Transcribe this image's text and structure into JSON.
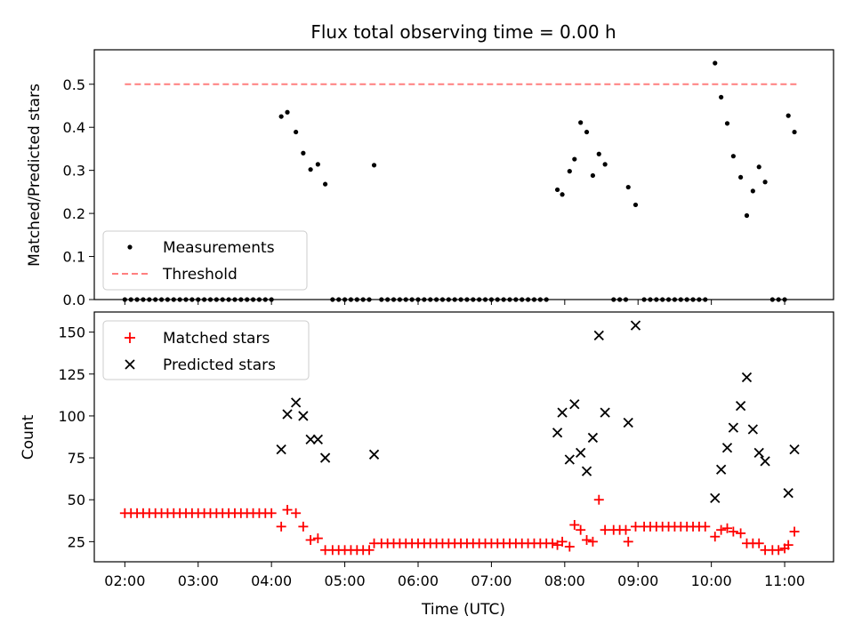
{
  "chart_data": [
    {
      "type": "scatter",
      "title": "Flux total observing time = 0.00 h",
      "xlabel": "",
      "ylabel": "Matched/Predicted stars",
      "xlim": [
        "01:35",
        "11:40"
      ],
      "ylim": [
        0,
        0.58
      ],
      "yticks": [
        0.0,
        0.1,
        0.2,
        0.3,
        0.4,
        0.5
      ],
      "ytick_labels": [
        "0.0",
        "0.1",
        "0.2",
        "0.3",
        "0.4",
        "0.5"
      ],
      "legend": {
        "placement": "lower-left",
        "entries": [
          "Measurements",
          "Threshold"
        ]
      },
      "series": [
        {
          "name": "Measurements",
          "marker": "dot",
          "color": "#000000",
          "points": [
            [
              "02:00",
              0
            ],
            [
              "02:05",
              0
            ],
            [
              "02:10",
              0
            ],
            [
              "02:15",
              0
            ],
            [
              "02:20",
              0
            ],
            [
              "02:25",
              0
            ],
            [
              "02:30",
              0
            ],
            [
              "02:35",
              0
            ],
            [
              "02:40",
              0
            ],
            [
              "02:45",
              0
            ],
            [
              "02:50",
              0
            ],
            [
              "02:55",
              0
            ],
            [
              "03:00",
              0
            ],
            [
              "03:05",
              0
            ],
            [
              "03:10",
              0
            ],
            [
              "03:15",
              0
            ],
            [
              "03:20",
              0
            ],
            [
              "03:25",
              0
            ],
            [
              "03:30",
              0
            ],
            [
              "03:35",
              0
            ],
            [
              "03:40",
              0
            ],
            [
              "03:45",
              0
            ],
            [
              "03:50",
              0
            ],
            [
              "03:55",
              0
            ],
            [
              "04:00",
              0
            ],
            [
              "04:08",
              0.425
            ],
            [
              "04:13",
              0.435
            ],
            [
              "04:20",
              0.389
            ],
            [
              "04:26",
              0.34
            ],
            [
              "04:32",
              0.302
            ],
            [
              "04:38",
              0.314
            ],
            [
              "04:44",
              0.268
            ],
            [
              "04:50",
              0
            ],
            [
              "04:55",
              0
            ],
            [
              "05:00",
              0
            ],
            [
              "05:05",
              0
            ],
            [
              "05:10",
              0
            ],
            [
              "05:15",
              0
            ],
            [
              "05:20",
              0
            ],
            [
              "05:24",
              0.312
            ],
            [
              "05:30",
              0
            ],
            [
              "05:35",
              0
            ],
            [
              "05:40",
              0
            ],
            [
              "05:45",
              0
            ],
            [
              "05:50",
              0
            ],
            [
              "05:55",
              0
            ],
            [
              "06:00",
              0
            ],
            [
              "06:05",
              0
            ],
            [
              "06:10",
              0
            ],
            [
              "06:15",
              0
            ],
            [
              "06:20",
              0
            ],
            [
              "06:25",
              0
            ],
            [
              "06:30",
              0
            ],
            [
              "06:35",
              0
            ],
            [
              "06:40",
              0
            ],
            [
              "06:45",
              0
            ],
            [
              "06:50",
              0
            ],
            [
              "06:55",
              0
            ],
            [
              "07:00",
              0
            ],
            [
              "07:05",
              0
            ],
            [
              "07:10",
              0
            ],
            [
              "07:15",
              0
            ],
            [
              "07:20",
              0
            ],
            [
              "07:25",
              0
            ],
            [
              "07:30",
              0
            ],
            [
              "07:35",
              0
            ],
            [
              "07:40",
              0
            ],
            [
              "07:45",
              0
            ],
            [
              "07:54",
              0.255
            ],
            [
              "07:58",
              0.244
            ],
            [
              "08:04",
              0.298
            ],
            [
              "08:08",
              0.326
            ],
            [
              "08:13",
              0.411
            ],
            [
              "08:18",
              0.389
            ],
            [
              "08:23",
              0.288
            ],
            [
              "08:28",
              0.338
            ],
            [
              "08:33",
              0.314
            ],
            [
              "08:40",
              0
            ],
            [
              "08:45",
              0
            ],
            [
              "08:50",
              0
            ],
            [
              "08:52",
              0.261
            ],
            [
              "08:58",
              0.22
            ],
            [
              "09:05",
              0
            ],
            [
              "09:10",
              0
            ],
            [
              "09:15",
              0
            ],
            [
              "09:20",
              0
            ],
            [
              "09:25",
              0
            ],
            [
              "09:30",
              0
            ],
            [
              "09:35",
              0
            ],
            [
              "09:40",
              0
            ],
            [
              "09:45",
              0
            ],
            [
              "09:50",
              0
            ],
            [
              "09:55",
              0
            ],
            [
              "10:03",
              0.549
            ],
            [
              "10:08",
              0.47
            ],
            [
              "10:13",
              0.409
            ],
            [
              "10:18",
              0.333
            ],
            [
              "10:24",
              0.284
            ],
            [
              "10:29",
              0.195
            ],
            [
              "10:34",
              0.252
            ],
            [
              "10:39",
              0.308
            ],
            [
              "10:44",
              0.273
            ],
            [
              "10:50",
              0
            ],
            [
              "10:55",
              0
            ],
            [
              "11:00",
              0
            ],
            [
              "11:03",
              0.427
            ],
            [
              "11:08",
              0.389
            ]
          ]
        },
        {
          "name": "Threshold",
          "style": "dashed-line",
          "color": "#ff7f7f",
          "points": [
            [
              "02:00",
              0.5
            ],
            [
              "11:10",
              0.5
            ]
          ]
        }
      ]
    },
    {
      "type": "scatter",
      "title": "",
      "xlabel": "Time (UTC)",
      "ylabel": "Count",
      "xlim": [
        "01:35",
        "11:40"
      ],
      "ylim": [
        13,
        162
      ],
      "yticks": [
        25,
        50,
        75,
        100,
        125,
        150
      ],
      "ytick_labels": [
        "25",
        "50",
        "75",
        "100",
        "125",
        "150"
      ],
      "xticks": [
        "02:00",
        "03:00",
        "04:00",
        "05:00",
        "06:00",
        "07:00",
        "08:00",
        "09:00",
        "10:00",
        "11:00"
      ],
      "xtick_labels": [
        "02:00",
        "03:00",
        "04:00",
        "05:00",
        "06:00",
        "07:00",
        "08:00",
        "09:00",
        "10:00",
        "11:00"
      ],
      "legend": {
        "placement": "upper-left",
        "entries": [
          "Matched stars",
          "Predicted stars"
        ]
      },
      "series": [
        {
          "name": "Matched stars",
          "marker": "plus",
          "color": "#ff0000",
          "points": [
            [
              "02:00",
              42
            ],
            [
              "02:05",
              42
            ],
            [
              "02:10",
              42
            ],
            [
              "02:15",
              42
            ],
            [
              "02:20",
              42
            ],
            [
              "02:25",
              42
            ],
            [
              "02:30",
              42
            ],
            [
              "02:35",
              42
            ],
            [
              "02:40",
              42
            ],
            [
              "02:45",
              42
            ],
            [
              "02:50",
              42
            ],
            [
              "02:55",
              42
            ],
            [
              "03:00",
              42
            ],
            [
              "03:05",
              42
            ],
            [
              "03:10",
              42
            ],
            [
              "03:15",
              42
            ],
            [
              "03:20",
              42
            ],
            [
              "03:25",
              42
            ],
            [
              "03:30",
              42
            ],
            [
              "03:35",
              42
            ],
            [
              "03:40",
              42
            ],
            [
              "03:45",
              42
            ],
            [
              "03:50",
              42
            ],
            [
              "03:55",
              42
            ],
            [
              "04:00",
              42
            ],
            [
              "04:08",
              34
            ],
            [
              "04:13",
              44
            ],
            [
              "04:20",
              42
            ],
            [
              "04:26",
              34
            ],
            [
              "04:32",
              26
            ],
            [
              "04:38",
              27
            ],
            [
              "04:44",
              20
            ],
            [
              "04:50",
              20
            ],
            [
              "04:55",
              20
            ],
            [
              "05:00",
              20
            ],
            [
              "05:05",
              20
            ],
            [
              "05:10",
              20
            ],
            [
              "05:15",
              20
            ],
            [
              "05:20",
              20
            ],
            [
              "05:24",
              24
            ],
            [
              "05:30",
              24
            ],
            [
              "05:35",
              24
            ],
            [
              "05:40",
              24
            ],
            [
              "05:45",
              24
            ],
            [
              "05:50",
              24
            ],
            [
              "05:55",
              24
            ],
            [
              "06:00",
              24
            ],
            [
              "06:05",
              24
            ],
            [
              "06:10",
              24
            ],
            [
              "06:15",
              24
            ],
            [
              "06:20",
              24
            ],
            [
              "06:25",
              24
            ],
            [
              "06:30",
              24
            ],
            [
              "06:35",
              24
            ],
            [
              "06:40",
              24
            ],
            [
              "06:45",
              24
            ],
            [
              "06:50",
              24
            ],
            [
              "06:55",
              24
            ],
            [
              "07:00",
              24
            ],
            [
              "07:05",
              24
            ],
            [
              "07:10",
              24
            ],
            [
              "07:15",
              24
            ],
            [
              "07:20",
              24
            ],
            [
              "07:25",
              24
            ],
            [
              "07:30",
              24
            ],
            [
              "07:35",
              24
            ],
            [
              "07:40",
              24
            ],
            [
              "07:45",
              24
            ],
            [
              "07:50",
              24
            ],
            [
              "07:54",
              23
            ],
            [
              "07:58",
              25
            ],
            [
              "08:04",
              22
            ],
            [
              "08:08",
              35
            ],
            [
              "08:13",
              32
            ],
            [
              "08:18",
              26
            ],
            [
              "08:23",
              25
            ],
            [
              "08:28",
              50
            ],
            [
              "08:33",
              32
            ],
            [
              "08:40",
              32
            ],
            [
              "08:45",
              32
            ],
            [
              "08:50",
              32
            ],
            [
              "08:52",
              25
            ],
            [
              "08:58",
              34
            ],
            [
              "09:05",
              34
            ],
            [
              "09:10",
              34
            ],
            [
              "09:15",
              34
            ],
            [
              "09:20",
              34
            ],
            [
              "09:25",
              34
            ],
            [
              "09:30",
              34
            ],
            [
              "09:35",
              34
            ],
            [
              "09:40",
              34
            ],
            [
              "09:45",
              34
            ],
            [
              "09:50",
              34
            ],
            [
              "09:55",
              34
            ],
            [
              "10:03",
              28
            ],
            [
              "10:08",
              32
            ],
            [
              "10:13",
              33
            ],
            [
              "10:18",
              31
            ],
            [
              "10:24",
              30
            ],
            [
              "10:29",
              24
            ],
            [
              "10:34",
              24
            ],
            [
              "10:39",
              24
            ],
            [
              "10:44",
              20
            ],
            [
              "10:50",
              20
            ],
            [
              "10:55",
              20
            ],
            [
              "11:00",
              21
            ],
            [
              "11:03",
              23
            ],
            [
              "11:08",
              31
            ]
          ]
        },
        {
          "name": "Predicted stars",
          "marker": "x",
          "color": "#000000",
          "points": [
            [
              "04:08",
              80
            ],
            [
              "04:13",
              101
            ],
            [
              "04:20",
              108
            ],
            [
              "04:26",
              100
            ],
            [
              "04:32",
              86
            ],
            [
              "04:38",
              86
            ],
            [
              "04:44",
              75
            ],
            [
              "05:24",
              77
            ],
            [
              "07:54",
              90
            ],
            [
              "07:58",
              102
            ],
            [
              "08:04",
              74
            ],
            [
              "08:08",
              107
            ],
            [
              "08:13",
              78
            ],
            [
              "08:18",
              67
            ],
            [
              "08:23",
              87
            ],
            [
              "08:28",
              148
            ],
            [
              "08:33",
              102
            ],
            [
              "08:52",
              96
            ],
            [
              "08:58",
              154
            ],
            [
              "10:03",
              51
            ],
            [
              "10:08",
              68
            ],
            [
              "10:13",
              81
            ],
            [
              "10:18",
              93
            ],
            [
              "10:24",
              106
            ],
            [
              "10:29",
              123
            ],
            [
              "10:34",
              92
            ],
            [
              "10:39",
              78
            ],
            [
              "10:44",
              73
            ],
            [
              "11:03",
              54
            ],
            [
              "11:08",
              80
            ]
          ]
        }
      ]
    }
  ]
}
